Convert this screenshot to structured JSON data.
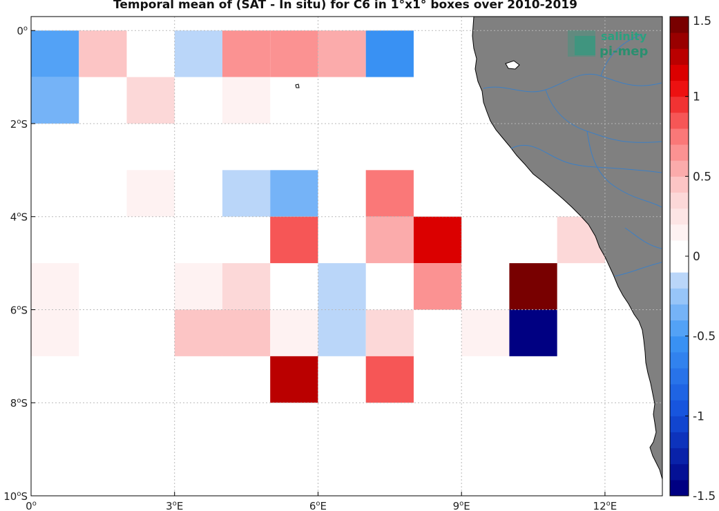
{
  "title": "Temporal mean of (SAT - In situ) for C6 in 1°x1° boxes over 2010-2019",
  "logo": {
    "line1": "salinity",
    "line2": "pi-mep"
  },
  "axes": {
    "x_ticks": [
      {
        "value": 0,
        "label": "0"
      },
      {
        "value": 3,
        "label": "3"
      },
      {
        "value": 6,
        "label": "6"
      },
      {
        "value": 9,
        "label": "9"
      },
      {
        "value": 12,
        "label": "12"
      }
    ],
    "y_ticks": [
      {
        "value": 0,
        "label": "0"
      },
      {
        "value": -2,
        "label": "2"
      },
      {
        "value": -4,
        "label": "4"
      },
      {
        "value": -6,
        "label": "6"
      },
      {
        "value": -8,
        "label": "8"
      },
      {
        "value": -10,
        "label": "10"
      }
    ],
    "x_suffix": "E",
    "y_suffix": "S",
    "degree_symbol": "o",
    "lon_range": [
      0,
      13.2
    ],
    "lat_range": [
      -10,
      0.3
    ]
  },
  "colorbar": {
    "range": [
      -1.5,
      1.5
    ],
    "levels": 30,
    "tick_labels": [
      "1.5",
      "1",
      "0.5",
      "0",
      "-0.5",
      "-1",
      "-1.5"
    ],
    "tick_values": [
      1.5,
      1,
      0.5,
      0,
      -0.5,
      -1,
      -1.5
    ]
  },
  "colors": {
    "land": "#808080",
    "rivers": "#3d7fc4",
    "coast": "#000000",
    "grid": "#b8b8b8"
  },
  "chart_data": {
    "type": "heatmap",
    "cell_size_deg": 1,
    "cells": [
      {
        "lon": 0,
        "lat": 0,
        "value": -0.45
      },
      {
        "lon": 1,
        "lat": 0,
        "value": 0.4
      },
      {
        "lon": 2,
        "lat": 0,
        "value": 0.0
      },
      {
        "lon": 3,
        "lat": 0,
        "value": -0.15
      },
      {
        "lon": 4,
        "lat": 0,
        "value": 0.6
      },
      {
        "lon": 5,
        "lat": 0,
        "value": 0.6
      },
      {
        "lon": 6,
        "lat": 0,
        "value": 0.5
      },
      {
        "lon": 7,
        "lat": 0,
        "value": -0.55
      },
      {
        "lon": 0,
        "lat": -1,
        "value": -0.35
      },
      {
        "lon": 2,
        "lat": -1,
        "value": 0.3
      },
      {
        "lon": 4,
        "lat": -1,
        "value": 0.15
      },
      {
        "lon": 2,
        "lat": -3,
        "value": 0.15
      },
      {
        "lon": 4,
        "lat": -3,
        "value": -0.15
      },
      {
        "lon": 5,
        "lat": -3,
        "value": -0.35
      },
      {
        "lon": 7,
        "lat": -3,
        "value": 0.7
      },
      {
        "lon": 5,
        "lat": -4,
        "value": 0.85
      },
      {
        "lon": 7,
        "lat": -4,
        "value": 0.5
      },
      {
        "lon": 8,
        "lat": -4,
        "value": 1.15
      },
      {
        "lon": 11,
        "lat": -4,
        "value": 0.3
      },
      {
        "lon": 0,
        "lat": -5,
        "value": 0.15
      },
      {
        "lon": 3,
        "lat": -5,
        "value": 0.15
      },
      {
        "lon": 4,
        "lat": -5,
        "value": 0.3
      },
      {
        "lon": 6,
        "lat": -5,
        "value": -0.15
      },
      {
        "lon": 8,
        "lat": -5,
        "value": 0.6
      },
      {
        "lon": 10,
        "lat": -5,
        "value": 1.45
      },
      {
        "lon": 0,
        "lat": -6,
        "value": 0.15
      },
      {
        "lon": 3,
        "lat": -6,
        "value": 0.4
      },
      {
        "lon": 4,
        "lat": -6,
        "value": 0.4
      },
      {
        "lon": 5,
        "lat": -6,
        "value": 0.15
      },
      {
        "lon": 6,
        "lat": -6,
        "value": -0.15
      },
      {
        "lon": 7,
        "lat": -6,
        "value": 0.3
      },
      {
        "lon": 9,
        "lat": -6,
        "value": 0.15
      },
      {
        "lon": 10,
        "lat": -6,
        "value": -1.5
      },
      {
        "lon": 5,
        "lat": -7,
        "value": 1.2
      },
      {
        "lon": 7,
        "lat": -7,
        "value": 0.85
      }
    ]
  }
}
